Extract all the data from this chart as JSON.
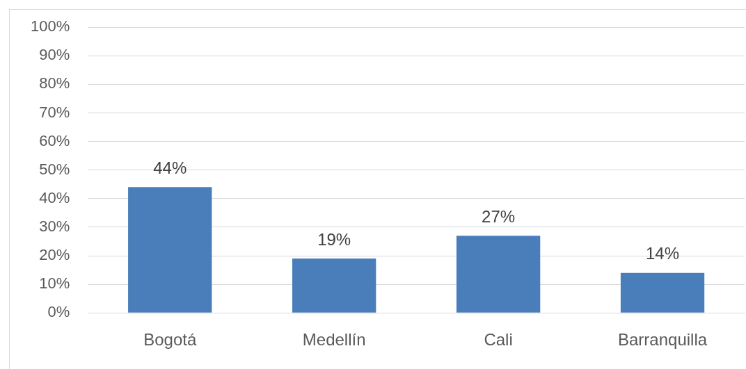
{
  "chart_data": {
    "type": "bar",
    "categories": [
      "Bogotá",
      "Medellín",
      "Cali",
      "Barranquilla"
    ],
    "values": [
      44,
      19,
      27,
      14
    ],
    "color": "#4a7ebb",
    "value_labels": [
      "44%",
      "19%",
      "27%",
      "14%"
    ],
    "ylim": [
      0,
      100
    ],
    "yticks": [
      {
        "value": 0,
        "label": "0%"
      },
      {
        "value": 10,
        "label": "10%"
      },
      {
        "value": 20,
        "label": "20%"
      },
      {
        "value": 30,
        "label": "30%"
      },
      {
        "value": 40,
        "label": "40%"
      },
      {
        "value": 50,
        "label": "50%"
      },
      {
        "value": 60,
        "label": "60%"
      },
      {
        "value": 70,
        "label": "70%"
      },
      {
        "value": 80,
        "label": "80%"
      },
      {
        "value": 90,
        "label": "90%"
      },
      {
        "value": 100,
        "label": "100%"
      }
    ],
    "grid": "y",
    "legend": false
  }
}
